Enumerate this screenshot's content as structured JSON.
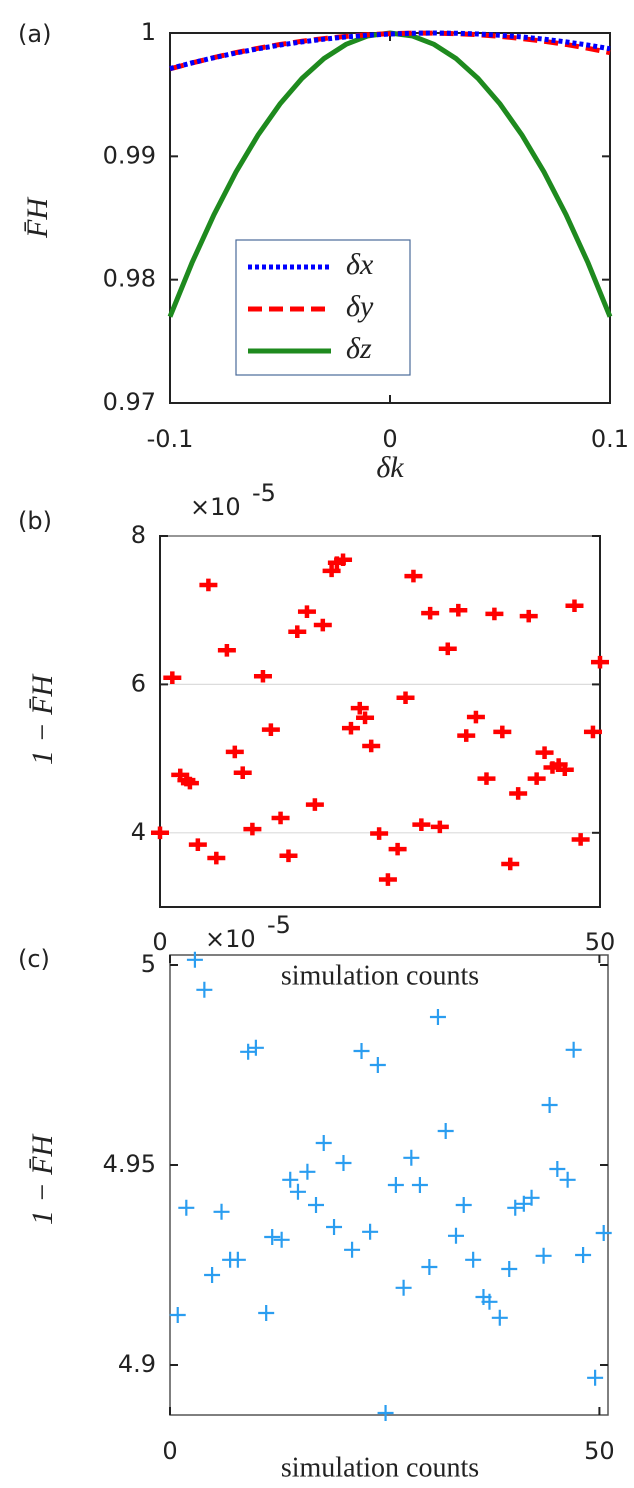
{
  "chart_data": [
    {
      "type": "line",
      "panel_label": "(a)",
      "xlabel": "δk",
      "ylabel": "F̄H",
      "x": [
        -0.1,
        -0.09,
        -0.08,
        -0.07,
        -0.06,
        -0.05,
        -0.04,
        -0.03,
        -0.02,
        -0.01,
        0,
        0.01,
        0.02,
        0.03,
        0.04,
        0.05,
        0.06,
        0.07,
        0.08,
        0.09,
        0.1
      ],
      "series": [
        {
          "name": "δx",
          "color": "#0000ff",
          "dash": "dotted",
          "values": [
            0.99712,
            0.99758,
            0.998,
            0.99838,
            0.99872,
            0.99902,
            0.99928,
            0.9995,
            0.99968,
            0.99982,
            0.99992,
            0.99998,
            1,
            0.99998,
            0.99992,
            0.99982,
            0.99968,
            0.9995,
            0.99928,
            0.99902,
            0.99872
          ]
        },
        {
          "name": "δy",
          "color": "#ff0000",
          "dash": "dashed",
          "values": [
            0.99709,
            0.99757,
            0.99801,
            0.99841,
            0.99876,
            0.99907,
            0.99933,
            0.99955,
            0.99973,
            0.99986,
            0.99995,
            0.99999,
            0.99999,
            0.99995,
            0.99986,
            0.99973,
            0.99955,
            0.99933,
            0.99907,
            0.99876,
            0.99841
          ]
        },
        {
          "name": "δz",
          "color": "#1e8a1e",
          "dash": "solid",
          "values": [
            0.977,
            0.98137,
            0.98528,
            0.98873,
            0.99172,
            0.99425,
            0.99632,
            0.99793,
            0.99908,
            0.99977,
            1,
            0.99977,
            0.99908,
            0.99793,
            0.99632,
            0.99425,
            0.99172,
            0.98873,
            0.98528,
            0.98137,
            0.977
          ]
        }
      ],
      "xlim": [
        -0.1,
        0.1
      ],
      "xticks": [
        -0.1,
        0,
        0.1
      ],
      "ylim": [
        0.97,
        1
      ],
      "yticks": [
        0.97,
        0.98,
        0.99,
        1
      ],
      "grid": false,
      "legend": "lower left"
    },
    {
      "type": "scatter",
      "panel_label": "(b)",
      "xlabel": "simulation counts",
      "ylabel": "1 − F̄H",
      "y_multiplier": "×10",
      "y_exponent": "-5",
      "color": "#ff0000",
      "marker_weight": "bold",
      "x": [
        0,
        1.4,
        2.3,
        3.0,
        3.4,
        4.3,
        5.5,
        6.4,
        7.6,
        8.5,
        9.4,
        10.5,
        11.7,
        12.6,
        13.7,
        14.6,
        15.6,
        16.7,
        17.6,
        18.5,
        19.5,
        20.1,
        20.8,
        21.7,
        22.7,
        23.3,
        24.0,
        24.9,
        25.9,
        27.0,
        27.9,
        28.8,
        29.7,
        30.7,
        31.8,
        32.7,
        33.9,
        34.8,
        35.9,
        37.1,
        38.0,
        38.9,
        39.8,
        40.7,
        41.9,
        42.8,
        43.7,
        44.6,
        45.3,
        46.0,
        47.1,
        47.8,
        49.2,
        50.0
      ],
      "values": [
        4.0,
        6.09,
        4.78,
        4.71,
        4.67,
        3.84,
        7.34,
        3.66,
        6.46,
        5.09,
        4.81,
        4.05,
        6.11,
        5.39,
        4.2,
        3.69,
        6.71,
        6.98,
        4.38,
        6.8,
        7.53,
        7.64,
        7.68,
        5.41,
        5.68,
        5.55,
        5.17,
        3.99,
        3.37,
        3.78,
        5.82,
        7.46,
        4.11,
        6.96,
        4.08,
        6.48,
        7.0,
        5.31,
        5.56,
        4.73,
        6.95,
        5.36,
        3.58,
        4.53,
        6.92,
        4.73,
        5.08,
        4.88,
        4.92,
        4.85,
        7.06,
        3.91,
        5.36,
        6.3
      ],
      "xlim": [
        0,
        50
      ],
      "xticks": [
        0,
        50
      ],
      "ylim": [
        3,
        8
      ],
      "yticks": [
        4,
        6,
        8
      ],
      "grid": true
    },
    {
      "type": "scatter",
      "panel_label": "(c)",
      "xlabel": "simulation counts",
      "ylabel": "1 − F̄H",
      "y_multiplier": "×10",
      "y_exponent": "-5",
      "color": "#2a9df0",
      "marker_weight": "thin",
      "x": [
        0.9,
        1.9,
        2.9,
        4.0,
        4.9,
        6.0,
        7.0,
        7.9,
        9.1,
        10.0,
        11.2,
        11.9,
        13.0,
        14.0,
        14.9,
        16.0,
        17.0,
        17.9,
        19.1,
        20.2,
        21.2,
        22.3,
        23.3,
        24.2,
        25.1,
        26.3,
        27.2,
        28.1,
        29.1,
        30.2,
        31.2,
        32.1,
        33.3,
        34.2,
        35.3,
        36.5,
        37.2,
        38.4,
        39.5,
        40.2,
        41.2,
        42.1,
        43.5,
        44.2,
        45.1,
        46.3,
        47.0,
        48.1,
        49.5,
        50.5
      ],
      "values": [
        4.9125,
        4.9393,
        5.0013,
        4.9938,
        4.9225,
        4.9383,
        4.9263,
        4.9263,
        4.9783,
        4.9793,
        4.913,
        4.932,
        4.9313,
        4.9463,
        4.9433,
        4.9483,
        4.94,
        4.9555,
        4.9345,
        4.9505,
        4.9288,
        4.9785,
        4.9333,
        4.975,
        4.888,
        4.945,
        4.9193,
        4.9518,
        4.945,
        4.9245,
        4.987,
        4.9585,
        4.9323,
        4.94,
        4.9263,
        4.917,
        4.9158,
        4.9118,
        4.924,
        4.9393,
        4.9403,
        4.9418,
        4.9273,
        4.965,
        4.949,
        4.9463,
        4.9788,
        4.9275,
        4.8968,
        4.933
      ],
      "xlim": [
        0,
        51
      ],
      "xticks": [
        0,
        50
      ],
      "ylim": [
        4.8875,
        5.0025
      ],
      "yticks": [
        4.9,
        4.95,
        5
      ],
      "grid": false
    }
  ]
}
